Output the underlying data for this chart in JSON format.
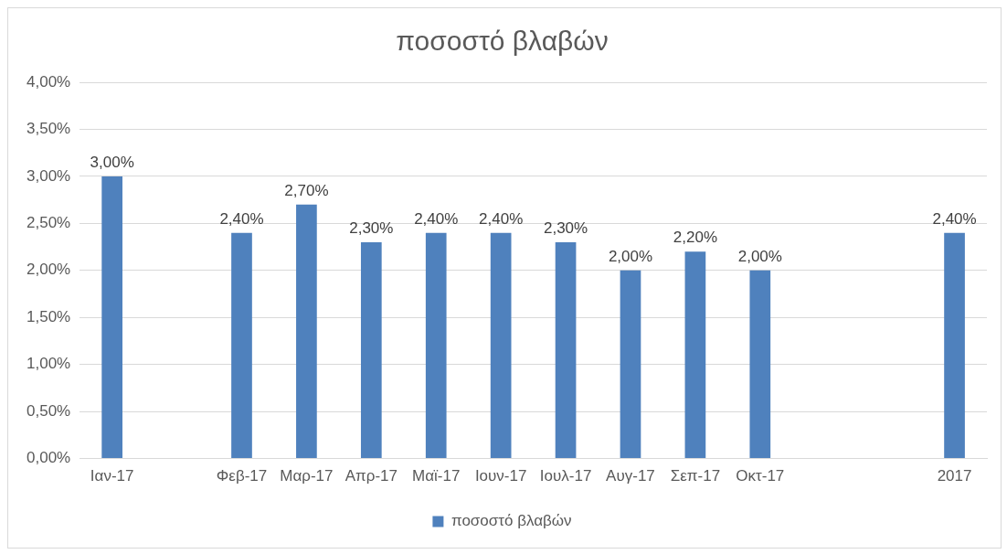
{
  "chart_data": {
    "type": "bar",
    "title": "ποσοστό βλαβών",
    "categories": [
      "Ιαν-17",
      null,
      "Φεβ-17",
      "Μαρ-17",
      "Απρ-17",
      "Μαϊ-17",
      "Ιουν-17",
      "Ιουλ-17",
      "Αυγ-17",
      "Σεπ-17",
      "Οκτ-17",
      null,
      null,
      "2017"
    ],
    "series": [
      {
        "name": "ποσοστό βλαβών",
        "color": "#4f81bd",
        "values": [
          3.0,
          null,
          2.4,
          2.7,
          2.3,
          2.4,
          2.4,
          2.3,
          2.0,
          2.2,
          2.0,
          null,
          null,
          2.4
        ],
        "value_labels": [
          "3,00%",
          null,
          "2,40%",
          "2,70%",
          "2,30%",
          "2,40%",
          "2,40%",
          "2,30%",
          "2,00%",
          "2,20%",
          "2,00%",
          null,
          null,
          "2,40%"
        ]
      }
    ],
    "ylim": [
      0,
      4
    ],
    "yticks": [
      {
        "value": 0,
        "label": "0,00%"
      },
      {
        "value": 0.5,
        "label": "0,50%"
      },
      {
        "value": 1,
        "label": "1,00%"
      },
      {
        "value": 1.5,
        "label": "1,50%"
      },
      {
        "value": 2,
        "label": "2,00%"
      },
      {
        "value": 2.5,
        "label": "2,50%"
      },
      {
        "value": 3,
        "label": "3,00%"
      },
      {
        "value": 3.5,
        "label": "3,50%"
      },
      {
        "value": 4,
        "label": "4,00%"
      }
    ],
    "grid": "y",
    "legend": "bottom"
  }
}
